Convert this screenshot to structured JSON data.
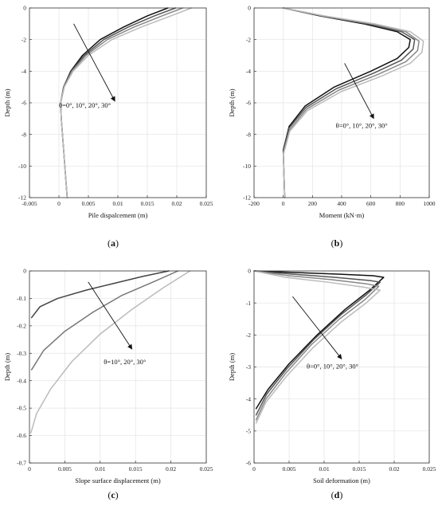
{
  "chart_data": [
    {
      "id": "a",
      "type": "line",
      "caption_letter": "a",
      "xlabel": "Pile dispalcement (m)",
      "ylabel": "Depth (m)",
      "xlim": [
        -0.005,
        0.025
      ],
      "ylim": [
        -12,
        0
      ],
      "xticks": [
        -0.005,
        0,
        0.005,
        0.01,
        0.015,
        0.02,
        0.025
      ],
      "xtick_labels": [
        "-0.005",
        "0",
        "0.005",
        "0.01",
        "0.015",
        "0.02",
        "0.025"
      ],
      "yticks": [
        0,
        -2,
        -4,
        -6,
        -8,
        -10,
        -12
      ],
      "ytick_labels": [
        "0",
        "-2",
        "-4",
        "-6",
        "-8",
        "-10",
        "-12"
      ],
      "grid": true,
      "annotation": {
        "text": "θ=0°, 10°, 20°, 30°",
        "arrow_from": [
          0.0025,
          -1.0
        ],
        "arrow_to": [
          0.0095,
          -5.9
        ],
        "text_at": [
          0.0,
          -6.3
        ]
      },
      "series": [
        {
          "color": "#111111",
          "x": [
            0.0185,
            0.015,
            0.011,
            0.007,
            0.004,
            0.002,
            0.0008,
            0.0003,
            0.0004,
            0.0008,
            0.0012,
            0.0014
          ],
          "y": [
            0,
            -0.5,
            -1.2,
            -2.0,
            -3.0,
            -4.0,
            -5.0,
            -6.0,
            -7.0,
            -9.0,
            -11.0,
            -12.0
          ]
        },
        {
          "color": "#555555",
          "x": [
            0.0198,
            0.0162,
            0.0118,
            0.0076,
            0.0043,
            0.0021,
            0.0008,
            0.0003,
            0.0004,
            0.0008,
            0.0012,
            0.0014
          ],
          "y": [
            0,
            -0.5,
            -1.2,
            -2.0,
            -3.0,
            -4.0,
            -5.0,
            -6.0,
            -7.0,
            -9.0,
            -11.0,
            -12.0
          ]
        },
        {
          "color": "#888888",
          "x": [
            0.021,
            0.0175,
            0.0128,
            0.0082,
            0.0046,
            0.0022,
            0.0009,
            0.0003,
            0.0004,
            0.0008,
            0.0012,
            0.0014
          ],
          "y": [
            0,
            -0.5,
            -1.2,
            -2.0,
            -3.0,
            -4.0,
            -5.0,
            -6.0,
            -7.0,
            -9.0,
            -11.0,
            -12.0
          ]
        },
        {
          "color": "#bbbbbb",
          "x": [
            0.0225,
            0.019,
            0.014,
            0.009,
            0.005,
            0.0024,
            0.0009,
            0.0003,
            0.0004,
            0.0008,
            0.0012,
            0.0014
          ],
          "y": [
            0,
            -0.5,
            -1.2,
            -2.0,
            -3.0,
            -4.0,
            -5.0,
            -6.0,
            -7.0,
            -9.0,
            -11.0,
            -12.0
          ]
        }
      ]
    },
    {
      "id": "b",
      "type": "line",
      "caption_letter": "b",
      "xlabel": "Moment (kN·m)",
      "ylabel": "Depth (m)",
      "xlim": [
        -200,
        1000
      ],
      "ylim": [
        -12,
        0
      ],
      "xticks": [
        -200,
        0,
        200,
        400,
        600,
        800,
        1000
      ],
      "xtick_labels": [
        "-200",
        "0",
        "200",
        "400",
        "600",
        "800",
        "1000"
      ],
      "yticks": [
        0,
        -2,
        -4,
        -6,
        -8,
        -10,
        -12
      ],
      "ytick_labels": [
        "0",
        "-2",
        "-4",
        "-6",
        "-8",
        "-10",
        "-12"
      ],
      "grid": true,
      "annotation": {
        "text": "θ=0°, 10°, 20°, 30°",
        "arrow_from": [
          420,
          -3.5
        ],
        "arrow_to": [
          620,
          -7.0
        ],
        "text_at": [
          360,
          -7.6
        ]
      },
      "series": [
        {
          "color": "#111111",
          "x": [
            0,
            250,
            550,
            780,
            870,
            860,
            780,
            600,
            350,
            150,
            40,
            0,
            5,
            10
          ],
          "y": [
            0,
            -0.5,
            -1.0,
            -1.5,
            -2.0,
            -2.5,
            -3.2,
            -4.0,
            -5.0,
            -6.2,
            -7.5,
            -9.0,
            -10.5,
            -12.0
          ]
        },
        {
          "color": "#555555",
          "x": [
            0,
            260,
            575,
            810,
            900,
            890,
            810,
            625,
            365,
            155,
            40,
            0,
            5,
            10
          ],
          "y": [
            0,
            -0.5,
            -1.0,
            -1.5,
            -2.0,
            -2.6,
            -3.3,
            -4.1,
            -5.1,
            -6.3,
            -7.6,
            -9.1,
            -10.5,
            -12.0
          ]
        },
        {
          "color": "#888888",
          "x": [
            0,
            270,
            600,
            840,
            930,
            920,
            840,
            650,
            380,
            160,
            45,
            0,
            5,
            10
          ],
          "y": [
            0,
            -0.5,
            -1.0,
            -1.5,
            -2.1,
            -2.7,
            -3.4,
            -4.2,
            -5.2,
            -6.4,
            -7.7,
            -9.2,
            -10.5,
            -12.0
          ]
        },
        {
          "color": "#bbbbbb",
          "x": [
            0,
            280,
            625,
            870,
            960,
            950,
            870,
            675,
            395,
            165,
            45,
            0,
            5,
            10
          ],
          "y": [
            0,
            -0.5,
            -1.0,
            -1.5,
            -2.1,
            -2.8,
            -3.5,
            -4.3,
            -5.3,
            -6.5,
            -7.8,
            -9.3,
            -10.5,
            -12.0
          ]
        }
      ]
    },
    {
      "id": "c",
      "type": "line",
      "caption_letter": "c",
      "xlabel": "Slope surface displacement (m)",
      "ylabel": "Depth (m)",
      "xlim": [
        0,
        0.025
      ],
      "ylim": [
        -0.7,
        0
      ],
      "xticks": [
        0,
        0.005,
        0.01,
        0.015,
        0.02,
        0.025
      ],
      "xtick_labels": [
        "0",
        "0.005",
        "0.01",
        "0.015",
        "0.02",
        "0.025"
      ],
      "yticks": [
        0,
        -0.1,
        -0.2,
        -0.3,
        -0.4,
        -0.5,
        -0.6,
        -0.7
      ],
      "ytick_labels": [
        "0",
        "-0.1",
        "-0.2",
        "-0.3",
        "-0.4",
        "-0.5",
        "-0.6",
        "-0.7"
      ],
      "grid": true,
      "annotation": {
        "text": "θ=10°, 20°, 30°",
        "arrow_from": [
          0.0083,
          -0.04
        ],
        "arrow_to": [
          0.0145,
          -0.285
        ],
        "text_at": [
          0.0105,
          -0.34
        ]
      },
      "series": [
        {
          "color": "#444444",
          "x": [
            0.0197,
            0.016,
            0.012,
            0.008,
            0.004,
            0.0015,
            0.0003
          ],
          "y": [
            0,
            -0.02,
            -0.045,
            -0.07,
            -0.1,
            -0.13,
            -0.17
          ]
        },
        {
          "color": "#777777",
          "x": [
            0.021,
            0.0175,
            0.013,
            0.009,
            0.005,
            0.002,
            0.0003
          ],
          "y": [
            0,
            -0.04,
            -0.09,
            -0.15,
            -0.22,
            -0.29,
            -0.36
          ]
        },
        {
          "color": "#bbbbbb",
          "x": [
            0.0227,
            0.019,
            0.0145,
            0.01,
            0.006,
            0.003,
            0.001,
            0.0002
          ],
          "y": [
            0,
            -0.06,
            -0.14,
            -0.23,
            -0.33,
            -0.43,
            -0.52,
            -0.59
          ]
        }
      ]
    },
    {
      "id": "d",
      "type": "line",
      "caption_letter": "d",
      "xlabel": "Soil deformation (m)",
      "ylabel": "Depth (m)",
      "xlim": [
        0,
        0.025
      ],
      "ylim": [
        -6,
        0
      ],
      "xticks": [
        0,
        0.005,
        0.01,
        0.015,
        0.02,
        0.025
      ],
      "xtick_labels": [
        "0",
        "0.005",
        "0.01",
        "0.015",
        "0.02",
        "0.025"
      ],
      "yticks": [
        0,
        -1,
        -2,
        -3,
        -4,
        -5,
        -6
      ],
      "ytick_labels": [
        "0",
        "-1",
        "-2",
        "-3",
        "-4",
        "-5",
        "-6"
      ],
      "grid": true,
      "annotation": {
        "text": "θ=0°, 10°, 20°, 30°",
        "arrow_from": [
          0.0055,
          -0.8
        ],
        "arrow_to": [
          0.0125,
          -2.75
        ],
        "text_at": [
          0.0075,
          -3.05
        ]
      },
      "series": [
        {
          "color": "#111111",
          "x": [
            0,
            0.006,
            0.012,
            0.017,
            0.0185,
            0.0165,
            0.013,
            0.009,
            0.005,
            0.002,
            0.0003
          ],
          "y": [
            0,
            -0.05,
            -0.1,
            -0.15,
            -0.2,
            -0.6,
            -1.2,
            -2.0,
            -2.9,
            -3.7,
            -4.3
          ]
        },
        {
          "color": "#555555",
          "x": [
            0,
            0.0055,
            0.0115,
            0.0165,
            0.018,
            0.016,
            0.0125,
            0.0085,
            0.0047,
            0.0018,
            0.0003
          ],
          "y": [
            0,
            -0.1,
            -0.2,
            -0.3,
            -0.35,
            -0.75,
            -1.35,
            -2.15,
            -3.05,
            -3.85,
            -4.5
          ]
        },
        {
          "color": "#888888",
          "x": [
            0,
            0.005,
            0.011,
            0.016,
            0.0178,
            0.0158,
            0.0122,
            0.0082,
            0.0045,
            0.0017,
            0.0003
          ],
          "y": [
            0,
            -0.15,
            -0.27,
            -0.4,
            -0.48,
            -0.9,
            -1.5,
            -2.3,
            -3.2,
            -4.0,
            -4.65
          ]
        },
        {
          "color": "#bbbbbb",
          "x": [
            0,
            0.0045,
            0.0105,
            0.0155,
            0.018,
            0.016,
            0.0124,
            0.0084,
            0.0046,
            0.0017,
            0.0003
          ],
          "y": [
            0,
            -0.2,
            -0.35,
            -0.5,
            -0.6,
            -1.0,
            -1.6,
            -2.4,
            -3.3,
            -4.1,
            -4.75
          ]
        }
      ]
    }
  ]
}
